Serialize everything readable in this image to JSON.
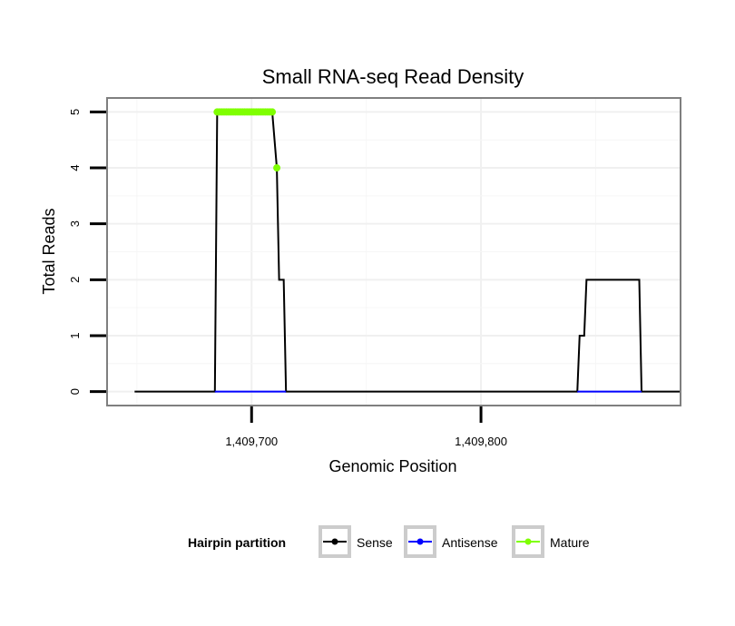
{
  "chart_data": {
    "type": "line",
    "title": "Small RNA-seq Read Density",
    "xlabel": "Genomic Position",
    "ylabel": "Total Reads",
    "xlim": [
      1409637,
      1409887
    ],
    "ylim": [
      -0.25,
      5.25
    ],
    "x_ticks": [
      1409700,
      1409800
    ],
    "x_tick_labels": [
      "1,409,700",
      "1,409,800"
    ],
    "y_ticks": [
      0,
      1,
      2,
      3,
      4,
      5
    ],
    "y_tick_labels": [
      "0",
      "1",
      "2",
      "3",
      "4",
      "5"
    ],
    "grid": true,
    "legend": {
      "title": "Hairpin partition",
      "position": "bottom",
      "entries": [
        "Sense",
        "Antisense",
        "Mature"
      ]
    },
    "series": [
      {
        "name": "Sense",
        "color": "#000000",
        "x": [
          1409649,
          1409684,
          1409685,
          1409709,
          1409711,
          1409712,
          1409714,
          1409715,
          1409716,
          1409842,
          1409843,
          1409845,
          1409846,
          1409869,
          1409870,
          1409887
        ],
        "y": [
          0,
          0,
          5,
          5,
          4,
          2,
          2,
          0,
          0,
          0,
          1,
          1,
          2,
          2,
          0,
          0
        ]
      },
      {
        "name": "Antisense",
        "color": "#0000ff",
        "x": [
          1409684,
          1409715,
          1409842,
          1409870
        ],
        "y": [
          0,
          0,
          0,
          0
        ],
        "segments": [
          [
            0,
            1
          ],
          [
            2,
            3
          ]
        ]
      },
      {
        "name": "Mature",
        "color": "#7fff00",
        "x": [
          1409685,
          1409686,
          1409687,
          1409688,
          1409689,
          1409690,
          1409691,
          1409692,
          1409693,
          1409694,
          1409695,
          1409696,
          1409697,
          1409698,
          1409699,
          1409700,
          1409701,
          1409702,
          1409703,
          1409704,
          1409705,
          1409706,
          1409707,
          1409708,
          1409709,
          1409711
        ],
        "y": [
          5,
          5,
          5,
          5,
          5,
          5,
          5,
          5,
          5,
          5,
          5,
          5,
          5,
          5,
          5,
          5,
          5,
          5,
          5,
          5,
          5,
          5,
          5,
          5,
          5,
          4
        ]
      }
    ]
  }
}
